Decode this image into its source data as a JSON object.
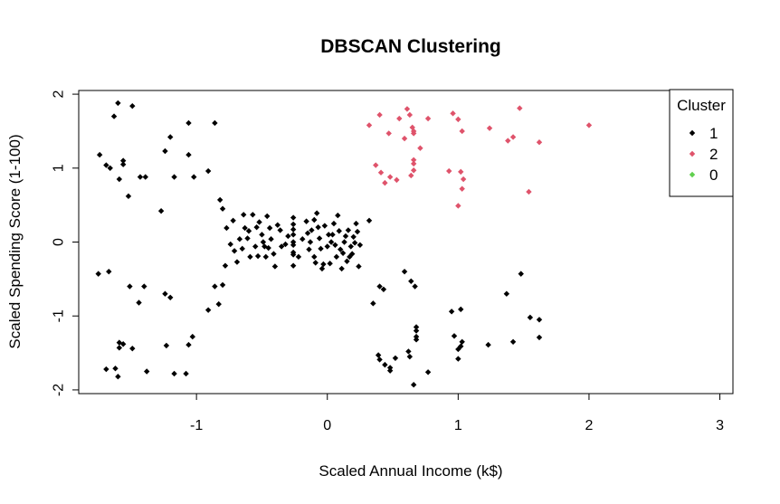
{
  "chart_data": {
    "type": "scatter",
    "title": "DBSCAN Clustering",
    "xlabel": "Scaled Annual Income (k$)",
    "ylabel": "Scaled Spending Score (1-100)",
    "xlim": [
      -1.9,
      3.1
    ],
    "ylim": [
      -2.05,
      2.05
    ],
    "x_ticks": [
      -1,
      0,
      1,
      2,
      3
    ],
    "x_tick_labels": [
      "-1",
      "0",
      "1",
      "2",
      "3"
    ],
    "y_ticks": [
      -2,
      -1,
      0,
      1,
      2
    ],
    "y_tick_labels": [
      "-2",
      "-1",
      "0",
      "1",
      "2"
    ],
    "grid": false,
    "legend": {
      "title": "Cluster",
      "placement": "top-right",
      "entries": [
        {
          "label": "1",
          "color": "#000000"
        },
        {
          "label": "2",
          "color": "#DF536B"
        },
        {
          "label": "0",
          "color": "#61D04F"
        }
      ]
    },
    "series": [
      {
        "name": "1",
        "color": "#000000",
        "points": [
          [
            -1.74,
            1.18
          ],
          [
            -1.69,
            1.04
          ],
          [
            -1.66,
            1.0
          ],
          [
            -1.59,
            0.85
          ],
          [
            -1.56,
            1.05
          ],
          [
            -1.56,
            1.1
          ],
          [
            -1.52,
            0.62
          ],
          [
            -1.43,
            0.88
          ],
          [
            -1.39,
            0.88
          ],
          [
            -1.27,
            0.42
          ],
          [
            -1.24,
            1.23
          ],
          [
            -1.2,
            1.42
          ],
          [
            -1.17,
            0.88
          ],
          [
            -1.06,
            1.18
          ],
          [
            -1.02,
            0.88
          ],
          [
            -0.91,
            0.96
          ],
          [
            -1.6,
            1.88
          ],
          [
            -1.49,
            1.84
          ],
          [
            -1.63,
            1.7
          ],
          [
            -1.06,
            1.61
          ],
          [
            -0.86,
            1.61
          ],
          [
            -0.82,
            0.57
          ],
          [
            -0.8,
            0.45
          ],
          [
            -0.77,
            0.19
          ],
          [
            -0.74,
            -0.03
          ],
          [
            -0.71,
            -0.12
          ],
          [
            -0.67,
            0.04
          ],
          [
            -0.64,
            0.37
          ],
          [
            -0.6,
            0.15
          ],
          [
            -0.57,
            0.37
          ],
          [
            -0.55,
            -0.06
          ],
          [
            -0.52,
            0.27
          ],
          [
            -0.49,
            0.0
          ],
          [
            -0.46,
            0.35
          ],
          [
            -0.44,
            0.19
          ],
          [
            -0.41,
            -0.16
          ],
          [
            -0.38,
            0.23
          ],
          [
            -0.35,
            -0.06
          ],
          [
            -0.3,
            0.08
          ],
          [
            -0.72,
            0.29
          ],
          [
            -0.69,
            -0.27
          ],
          [
            -0.63,
            0.19
          ],
          [
            -0.59,
            -0.2
          ],
          [
            -0.5,
            0.1
          ],
          [
            -0.47,
            -0.2
          ],
          [
            -0.45,
            -0.08
          ],
          [
            -0.43,
            0.04
          ],
          [
            -0.4,
            -0.33
          ],
          [
            -0.36,
            0.16
          ],
          [
            -0.32,
            -0.03
          ],
          [
            -0.78,
            -0.32
          ],
          [
            -0.65,
            -0.09
          ],
          [
            -0.61,
            0.05
          ],
          [
            -0.54,
            0.2
          ],
          [
            -0.53,
            -0.19
          ],
          [
            -0.48,
            -0.06
          ],
          [
            -0.26,
            0.33
          ],
          [
            -0.26,
            0.17
          ],
          [
            -0.26,
            0.0
          ],
          [
            -0.26,
            -0.14
          ],
          [
            -0.26,
            -0.32
          ],
          [
            -0.26,
            -0.17
          ],
          [
            -0.26,
            -0.04
          ],
          [
            -0.26,
            0.1
          ],
          [
            -0.26,
            0.24
          ],
          [
            -0.22,
            -0.2
          ],
          [
            -0.19,
            0.04
          ],
          [
            -0.16,
            0.28
          ],
          [
            -0.13,
            0.0
          ],
          [
            -0.12,
            0.16
          ],
          [
            -0.1,
            -0.2
          ],
          [
            -0.08,
            0.39
          ],
          [
            -0.07,
            0.2
          ],
          [
            -0.05,
            -0.09
          ],
          [
            -0.04,
            -0.36
          ],
          [
            -0.02,
            0.22
          ],
          [
            0.0,
            -0.06
          ],
          [
            0.02,
            -0.29
          ],
          [
            0.04,
            0.1
          ],
          [
            0.05,
            0.25
          ],
          [
            0.06,
            -0.04
          ],
          [
            0.08,
            0.36
          ],
          [
            0.1,
            -0.1
          ],
          [
            0.11,
            -0.36
          ],
          [
            0.13,
            0.0
          ],
          [
            0.15,
            -0.26
          ],
          [
            0.16,
            0.16
          ],
          [
            0.18,
            -0.06
          ],
          [
            0.2,
            0.07
          ],
          [
            0.22,
            0.25
          ],
          [
            0.24,
            -0.33
          ],
          [
            0.25,
            -0.04
          ],
          [
            0.07,
            -0.2
          ],
          [
            0.09,
            0.15
          ],
          [
            0.12,
            -0.15
          ],
          [
            0.14,
            0.08
          ],
          [
            0.17,
            -0.2
          ],
          [
            0.19,
            -0.16
          ],
          [
            0.21,
            -0.01
          ],
          [
            0.23,
            0.14
          ],
          [
            0.32,
            0.29
          ],
          [
            0.03,
            0.0
          ],
          [
            0.01,
            0.1
          ],
          [
            -0.03,
            -0.3
          ],
          [
            -0.06,
            0.05
          ],
          [
            -0.09,
            -0.28
          ],
          [
            -0.14,
            -0.1
          ],
          [
            -0.15,
            0.12
          ],
          [
            -0.1,
            0.3
          ],
          [
            -1.75,
            -0.43
          ],
          [
            -1.67,
            -0.4
          ],
          [
            -1.51,
            -0.6
          ],
          [
            -1.44,
            -0.82
          ],
          [
            -1.4,
            -0.6
          ],
          [
            -1.24,
            -0.7
          ],
          [
            -1.2,
            -0.75
          ],
          [
            -0.91,
            -0.92
          ],
          [
            -0.86,
            -0.6
          ],
          [
            -0.83,
            -0.84
          ],
          [
            -0.8,
            -0.58
          ],
          [
            -1.59,
            -1.43
          ],
          [
            -1.59,
            -1.36
          ],
          [
            -1.56,
            -1.38
          ],
          [
            -1.49,
            -1.44
          ],
          [
            -1.23,
            -1.4
          ],
          [
            -1.08,
            -1.78
          ],
          [
            -1.06,
            -1.39
          ],
          [
            -1.03,
            -1.28
          ],
          [
            -1.69,
            -1.72
          ],
          [
            -1.62,
            -1.71
          ],
          [
            -1.6,
            -1.82
          ],
          [
            -1.38,
            -1.75
          ],
          [
            -1.17,
            -1.78
          ],
          [
            0.35,
            -0.83
          ],
          [
            0.4,
            -0.6
          ],
          [
            0.43,
            -0.64
          ],
          [
            0.59,
            -0.4
          ],
          [
            0.64,
            -0.53
          ],
          [
            0.67,
            -0.6
          ],
          [
            0.95,
            -0.94
          ],
          [
            1.02,
            -0.91
          ],
          [
            1.37,
            -0.7
          ],
          [
            1.48,
            -0.43
          ],
          [
            1.55,
            -1.02
          ],
          [
            1.62,
            -1.05
          ],
          [
            0.39,
            -1.53
          ],
          [
            0.4,
            -1.59
          ],
          [
            0.44,
            -1.66
          ],
          [
            0.48,
            -1.7
          ],
          [
            0.48,
            -1.74
          ],
          [
            0.52,
            -1.57
          ],
          [
            0.62,
            -1.48
          ],
          [
            0.63,
            -1.55
          ],
          [
            0.66,
            -1.93
          ],
          [
            0.68,
            -1.32
          ],
          [
            0.68,
            -1.15
          ],
          [
            0.68,
            -1.2
          ],
          [
            0.68,
            -1.28
          ],
          [
            0.77,
            -1.76
          ],
          [
            0.97,
            -1.27
          ],
          [
            1.0,
            -1.58
          ],
          [
            1.0,
            -1.45
          ],
          [
            1.02,
            -1.41
          ],
          [
            1.03,
            -1.35
          ],
          [
            1.23,
            -1.39
          ],
          [
            1.42,
            -1.35
          ],
          [
            1.62,
            -1.29
          ]
        ]
      },
      {
        "name": "2",
        "color": "#DF536B",
        "points": [
          [
            0.32,
            1.58
          ],
          [
            0.37,
            1.04
          ],
          [
            0.4,
            1.72
          ],
          [
            0.41,
            0.94
          ],
          [
            0.44,
            0.8
          ],
          [
            0.47,
            1.47
          ],
          [
            0.48,
            0.88
          ],
          [
            0.53,
            0.84
          ],
          [
            0.55,
            1.67
          ],
          [
            0.59,
            1.4
          ],
          [
            0.61,
            1.8
          ],
          [
            0.63,
            1.72
          ],
          [
            0.64,
            0.9
          ],
          [
            0.65,
            1.55
          ],
          [
            0.66,
            1.47
          ],
          [
            0.66,
            1.5
          ],
          [
            0.66,
            1.11
          ],
          [
            0.66,
            1.06
          ],
          [
            0.66,
            0.97
          ],
          [
            0.71,
            1.27
          ],
          [
            0.77,
            1.67
          ],
          [
            0.93,
            0.96
          ],
          [
            0.96,
            1.74
          ],
          [
            1.0,
            1.66
          ],
          [
            1.0,
            0.49
          ],
          [
            1.02,
            0.95
          ],
          [
            1.03,
            0.72
          ],
          [
            1.03,
            1.5
          ],
          [
            1.04,
            0.85
          ],
          [
            1.24,
            1.54
          ],
          [
            1.38,
            1.37
          ],
          [
            1.42,
            1.42
          ],
          [
            1.47,
            1.81
          ],
          [
            1.54,
            0.68
          ],
          [
            1.62,
            1.35
          ],
          [
            2.0,
            1.58
          ]
        ]
      },
      {
        "name": "0",
        "color": "#61D04F",
        "points": []
      }
    ]
  }
}
